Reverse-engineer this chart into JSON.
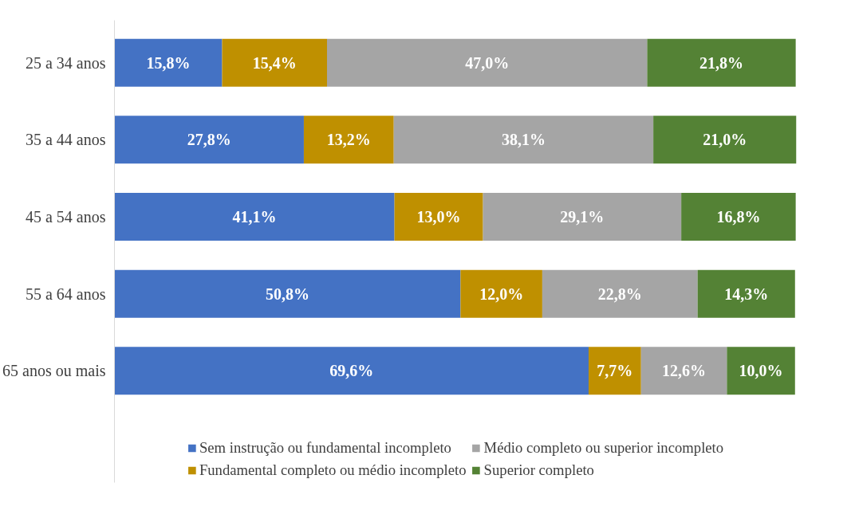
{
  "chart_data": {
    "type": "bar",
    "orientation": "horizontal",
    "stacked": true,
    "legend": "bottom",
    "grid": false,
    "tick_labels": "y",
    "categories": [
      "25 a 34 anos",
      "35 a 44 anos",
      "45 a 54 anos",
      "55 a 64 anos",
      "65 anos ou mais"
    ],
    "series": [
      {
        "name": "Sem instrução ou fundamental incompleto",
        "color": "#4472c4",
        "values": [
          15.8,
          27.8,
          41.1,
          50.8,
          69.6
        ],
        "value_labels": [
          "15,8%",
          "27,8%",
          "41,1%",
          "50,8%",
          "69,6%"
        ]
      },
      {
        "name": "Fundamental completo ou médio incompleto",
        "color": "#bf9000",
        "values": [
          15.4,
          13.2,
          13.0,
          12.0,
          7.7
        ],
        "value_labels": [
          "15,4%",
          "13,2%",
          "13,0%",
          "12,0%",
          "7,7%"
        ]
      },
      {
        "name": "Médio completo ou superior incompleto",
        "color": "#a5a5a5",
        "values": [
          47.0,
          38.1,
          29.1,
          22.8,
          12.6
        ],
        "value_labels": [
          "47,0%",
          "38,1%",
          "29,1%",
          "22,8%",
          "12,6%"
        ]
      },
      {
        "name": "Superior completo",
        "color": "#548235",
        "values": [
          21.8,
          21.0,
          16.8,
          14.3,
          10.0
        ],
        "value_labels": [
          "21,8%",
          "21,0%",
          "16,8%",
          "14,3%",
          "10,0%"
        ]
      }
    ]
  }
}
